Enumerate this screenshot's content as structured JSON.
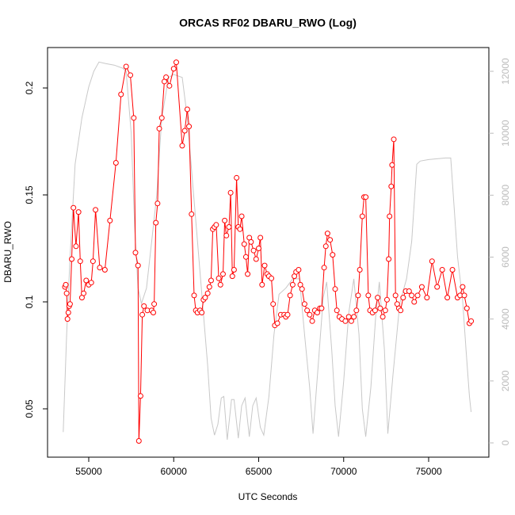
{
  "chart_data": {
    "type": "line",
    "title": "ORCAS RF02 DBARU_RWO (Log)",
    "x_label": "UTC Seconds",
    "y_label": "DBARU_RWO",
    "xlim": [
      52576,
      78543
    ],
    "xticks": [
      55000,
      60000,
      65000,
      70000,
      75000
    ],
    "ylim": [
      0.0274,
      0.2189
    ],
    "yticks": [
      0.05,
      0.1,
      0.15,
      0.2
    ],
    "y2lim": [
      -461,
      12768
    ],
    "y2ticks": [
      0,
      2000,
      4000,
      6000,
      8000,
      10000,
      12000
    ],
    "series": [
      {
        "color": "#ff0000",
        "markers": true,
        "axis": "y",
        "x": [
          53600,
          53650,
          53700,
          53750,
          53800,
          53850,
          53900,
          54000,
          54100,
          54250,
          54400,
          54500,
          54600,
          54700,
          54850,
          55000,
          55150,
          55250,
          55400,
          55650,
          55950,
          56250,
          56600,
          56900,
          57200,
          57450,
          57650,
          57750,
          57900,
          57950,
          58050,
          58150,
          58250,
          58450,
          58700,
          58800,
          58850,
          58950,
          59050,
          59150,
          59300,
          59450,
          59550,
          59750,
          60000,
          60150,
          60500,
          60650,
          60800,
          60900,
          61050,
          61200,
          61300,
          61400,
          61550,
          61650,
          61750,
          61850,
          62000,
          62100,
          62200,
          62300,
          62400,
          62500,
          62650,
          62750,
          62900,
          63000,
          63100,
          63250,
          63350,
          63450,
          63550,
          63700,
          63800,
          63900,
          64000,
          64150,
          64250,
          64350,
          64450,
          64550,
          64700,
          64850,
          65000,
          65100,
          65200,
          65350,
          65500,
          65600,
          65750,
          65850,
          65950,
          66100,
          66300,
          66500,
          66600,
          66700,
          66850,
          67000,
          67100,
          67200,
          67350,
          67450,
          67550,
          67700,
          67850,
          68000,
          68150,
          68300,
          68450,
          68600,
          68700,
          68850,
          68950,
          69050,
          69200,
          69350,
          69500,
          69600,
          69750,
          69900,
          70100,
          70300,
          70450,
          70600,
          70750,
          70850,
          70950,
          71100,
          71200,
          71300,
          71450,
          71550,
          71700,
          71850,
          72000,
          72150,
          72300,
          72450,
          72550,
          72650,
          72700,
          72800,
          72850,
          72950,
          73050,
          73150,
          73250,
          73350,
          73500,
          73650,
          73850,
          74000,
          74150,
          74350,
          74600,
          74900,
          75200,
          75500,
          75800,
          76100,
          76400,
          76700,
          76850,
          77000,
          77100,
          77250,
          77400,
          77500
        ],
        "values": [
          0.107,
          0.108,
          0.104,
          0.092,
          0.095,
          0.098,
          0.099,
          0.12,
          0.144,
          0.126,
          0.142,
          0.119,
          0.102,
          0.104,
          0.11,
          0.108,
          0.109,
          0.119,
          0.143,
          0.116,
          0.115,
          0.138,
          0.165,
          0.197,
          0.21,
          0.206,
          0.186,
          0.123,
          0.117,
          0.035,
          0.056,
          0.094,
          0.098,
          0.096,
          0.096,
          0.095,
          0.099,
          0.137,
          0.146,
          0.181,
          0.186,
          0.203,
          0.205,
          0.201,
          0.209,
          0.212,
          0.173,
          0.18,
          0.19,
          0.182,
          0.141,
          0.103,
          0.096,
          0.095,
          0.096,
          0.095,
          0.101,
          0.102,
          0.104,
          0.107,
          0.11,
          0.134,
          0.135,
          0.136,
          0.111,
          0.108,
          0.113,
          0.138,
          0.131,
          0.135,
          0.151,
          0.112,
          0.115,
          0.158,
          0.135,
          0.134,
          0.14,
          0.127,
          0.121,
          0.113,
          0.13,
          0.128,
          0.124,
          0.12,
          0.125,
          0.13,
          0.108,
          0.117,
          0.113,
          0.112,
          0.111,
          0.099,
          0.089,
          0.09,
          0.094,
          0.094,
          0.093,
          0.094,
          0.103,
          0.108,
          0.112,
          0.114,
          0.115,
          0.108,
          0.106,
          0.099,
          0.096,
          0.094,
          0.091,
          0.096,
          0.095,
          0.097,
          0.097,
          0.116,
          0.126,
          0.132,
          0.129,
          0.122,
          0.106,
          0.096,
          0.093,
          0.092,
          0.091,
          0.093,
          0.091,
          0.093,
          0.096,
          0.103,
          0.115,
          0.14,
          0.149,
          0.149,
          0.103,
          0.096,
          0.095,
          0.096,
          0.102,
          0.097,
          0.093,
          0.096,
          0.101,
          0.12,
          0.14,
          0.154,
          0.164,
          0.176,
          0.103,
          0.099,
          0.097,
          0.096,
          0.102,
          0.105,
          0.105,
          0.103,
          0.1,
          0.103,
          0.107,
          0.102,
          0.119,
          0.107,
          0.115,
          0.102,
          0.115,
          0.102,
          0.103,
          0.107,
          0.103,
          0.097,
          0.09,
          0.091
        ]
      },
      {
        "color": "#c8c8c8",
        "markers": false,
        "axis": "y2",
        "x": [
          53500,
          53700,
          53900,
          54200,
          54600,
          55000,
          55300,
          55600,
          56000,
          56500,
          57000,
          57200,
          57500,
          57700,
          57900,
          58100,
          58400,
          58700,
          59000,
          59300,
          59700,
          60000,
          60500,
          60800,
          61100,
          61400,
          61700,
          62000,
          62200,
          62400,
          62600,
          62800,
          62950,
          63150,
          63400,
          63550,
          63800,
          64000,
          64200,
          64450,
          64650,
          64850,
          65100,
          65300,
          65600,
          65900,
          66200,
          66600,
          67000,
          67400,
          67700,
          68000,
          68200,
          68500,
          68800,
          69000,
          69300,
          69500,
          69700,
          70000,
          70300,
          70600,
          70900,
          71100,
          71300,
          71600,
          71900,
          72100,
          72400,
          72600,
          72900,
          73300,
          73700,
          74000,
          74300,
          74500,
          75000,
          76000,
          76300,
          76700,
          77000,
          77200,
          77400,
          77500
        ],
        "values": [
          350,
          3500,
          6000,
          9000,
          10500,
          11500,
          12000,
          12300,
          12250,
          12200,
          12100,
          12000,
          10000,
          7000,
          5000,
          4500,
          5000,
          6500,
          8000,
          10500,
          11800,
          11900,
          11800,
          10500,
          8500,
          6500,
          4500,
          2500,
          800,
          250,
          600,
          1450,
          1500,
          100,
          1400,
          1400,
          150,
          1200,
          1450,
          200,
          1200,
          1450,
          500,
          250,
          1500,
          3500,
          4800,
          5000,
          5300,
          5300,
          3500,
          1800,
          300,
          2500,
          4700,
          5200,
          3000,
          1200,
          200,
          2000,
          4200,
          5300,
          3500,
          1100,
          200,
          1800,
          4200,
          5200,
          3000,
          300,
          2200,
          4500,
          5300,
          6500,
          9000,
          9100,
          9150,
          9200,
          9200,
          6000,
          4600,
          3000,
          1500,
          1000
        ]
      }
    ]
  }
}
